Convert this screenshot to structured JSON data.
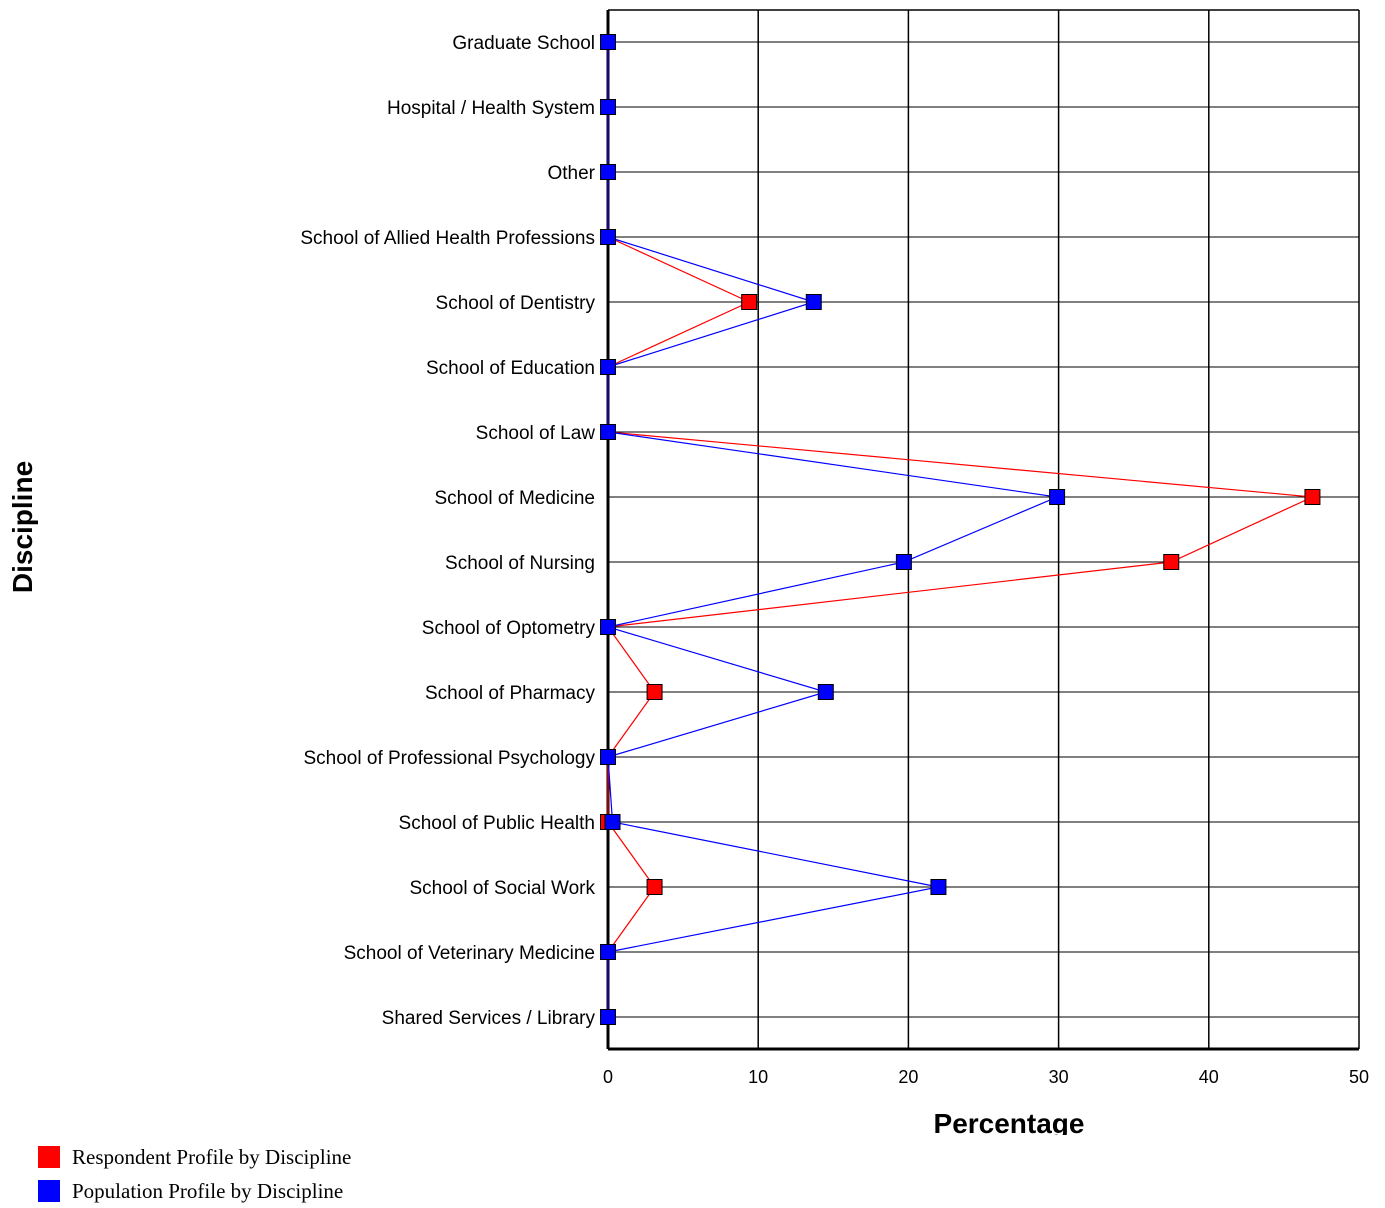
{
  "chart_data": {
    "type": "line",
    "orientation": "horizontal",
    "xlabel": "Percentage",
    "ylabel": "Discipline",
    "xlim": [
      0,
      50
    ],
    "xticks": [
      0,
      10,
      20,
      30,
      40,
      50
    ],
    "grid": true,
    "legend_placement": "bottom-left",
    "categories": [
      "Graduate School",
      "Hospital / Health System",
      "Other",
      "School of Allied Health Professions",
      "School of Dentistry",
      "School of Education",
      "School of Law",
      "School of Medicine",
      "School of Nursing",
      "School of Optometry",
      "School of Pharmacy",
      "School of Professional Psychology",
      "School of Public Health",
      "School of Social Work",
      "School of Veterinary Medicine",
      "Shared Services / Library"
    ],
    "series": [
      {
        "name": "Respondent Profile by Discipline",
        "color": "#ff0000",
        "values": [
          0,
          0,
          0,
          0,
          9.4,
          0,
          0,
          46.9,
          37.5,
          0,
          3.1,
          0,
          0,
          3.1,
          0,
          0
        ]
      },
      {
        "name": "Population Profile by Discipline",
        "color": "#0000ff",
        "values": [
          0,
          0,
          0,
          0,
          13.7,
          0,
          0,
          29.9,
          19.7,
          0,
          14.5,
          0,
          0.3,
          22.0,
          0,
          0
        ]
      }
    ]
  }
}
